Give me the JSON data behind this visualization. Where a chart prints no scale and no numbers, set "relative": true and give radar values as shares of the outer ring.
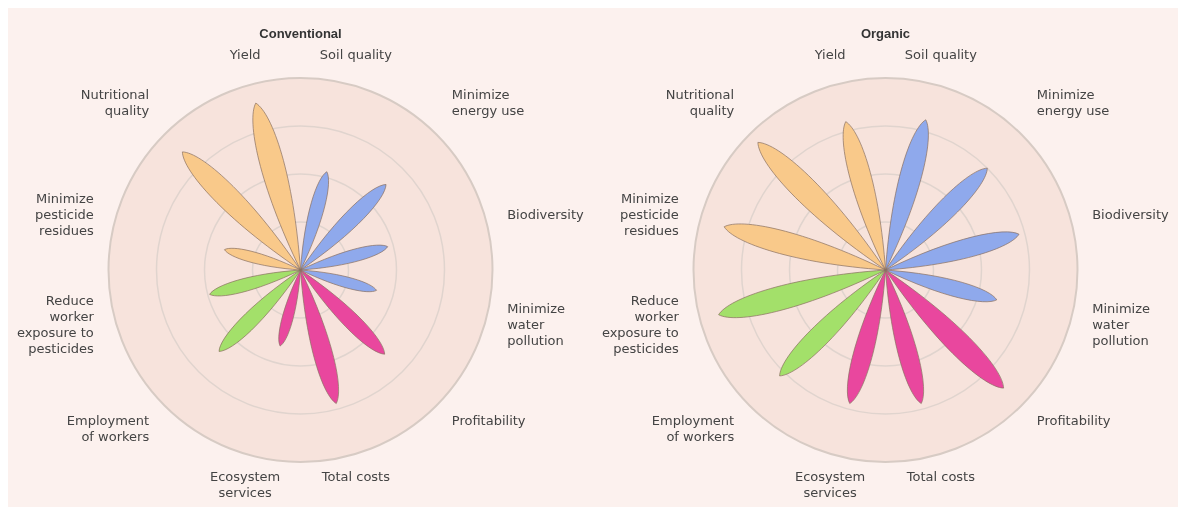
{
  "chart_data": [
    {
      "type": "radar",
      "title": "Conventional",
      "relative": true,
      "grid": true,
      "categories": [
        "Soil quality",
        "Minimize energy use",
        "Biodiversity",
        "Minimize water pollution",
        "Profitability",
        "Total costs",
        "Ecosystem services",
        "Employment of workers",
        "Reduce worker exposure to pesticides",
        "Minimize pesticide residues",
        "Nutritional quality",
        "Yield"
      ],
      "series": [
        {
          "color": "#8fa9ec",
          "values": [
            0.53,
            0.63,
            0.47,
            0.41,
            null,
            null,
            null,
            null,
            null,
            null,
            null,
            null
          ]
        },
        {
          "color": "#e9479e",
          "values": [
            null,
            null,
            null,
            null,
            0.62,
            0.72,
            0.41,
            null,
            null,
            null,
            null,
            null
          ]
        },
        {
          "color": "#a3e06a",
          "values": [
            null,
            null,
            null,
            null,
            null,
            null,
            null,
            0.6,
            0.49,
            null,
            null,
            null
          ]
        },
        {
          "color": "#f9c98a",
          "values": [
            null,
            null,
            null,
            null,
            null,
            null,
            null,
            null,
            null,
            0.41,
            0.87,
            0.9
          ]
        }
      ]
    },
    {
      "type": "radar",
      "title": "Organic",
      "relative": true,
      "grid": true,
      "categories": [
        "Soil quality",
        "Minimize energy use",
        "Biodiversity",
        "Minimize water pollution",
        "Profitability",
        "Total costs",
        "Ecosystem services",
        "Employment of workers",
        "Reduce worker exposure to pesticides",
        "Minimize pesticide residues",
        "Nutritional quality",
        "Yield"
      ],
      "series": [
        {
          "color": "#8fa9ec",
          "values": [
            0.81,
            0.75,
            0.72,
            0.6,
            null,
            null,
            null,
            null,
            null,
            null,
            null,
            null
          ]
        },
        {
          "color": "#e9479e",
          "values": [
            null,
            null,
            null,
            null,
            0.87,
            0.72,
            0.72,
            null,
            null,
            null,
            null,
            null
          ]
        },
        {
          "color": "#a3e06a",
          "values": [
            null,
            null,
            null,
            null,
            null,
            null,
            null,
            0.78,
            0.9,
            null,
            null,
            null
          ]
        },
        {
          "color": "#f9c98a",
          "values": [
            null,
            null,
            null,
            null,
            null,
            null,
            null,
            null,
            null,
            0.87,
            0.94,
            0.8
          ]
        }
      ]
    }
  ]
}
